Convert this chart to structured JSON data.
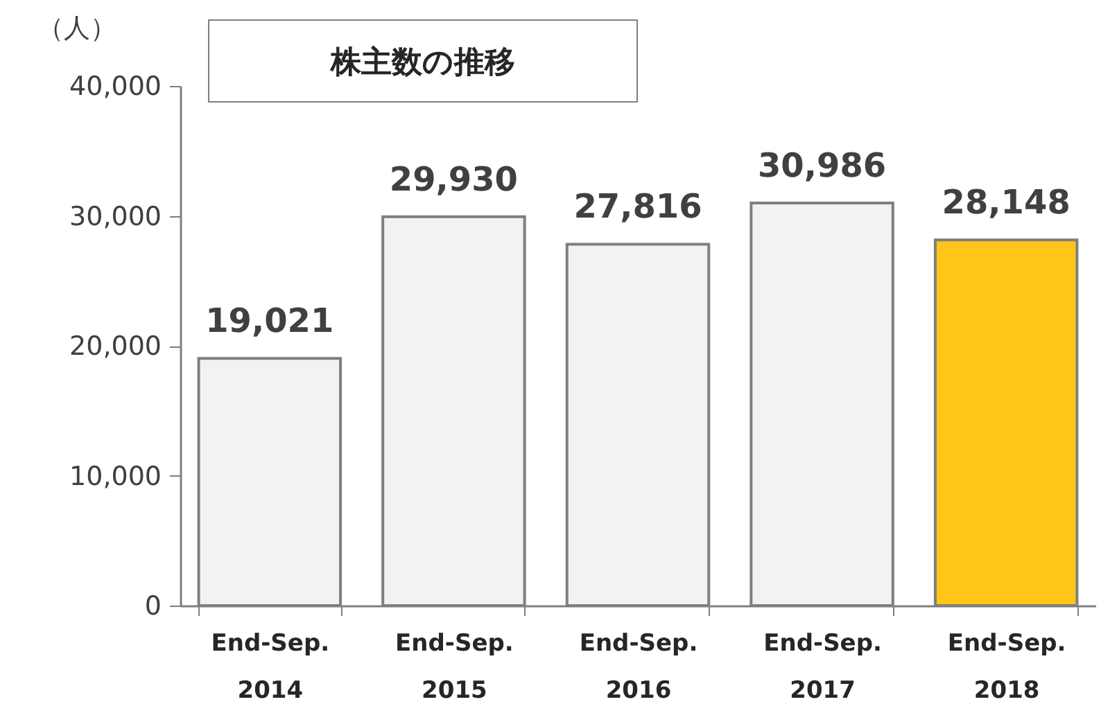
{
  "chart_data": {
    "type": "bar",
    "title": "株主数の推移",
    "ylabel": "（人）",
    "categories": [
      "End-Sep.\n2014",
      "End-Sep.\n2015",
      "End-Sep.\n2016",
      "End-Sep.\n2017",
      "End-Sep.\n2018"
    ],
    "values": [
      19021,
      29930,
      27816,
      30986,
      28148
    ],
    "value_labels": [
      "19,021",
      "29,930",
      "27,816",
      "30,986",
      "28,148"
    ],
    "colors": [
      "#f2f2f2",
      "#f2f2f2",
      "#f2f2f2",
      "#f2f2f2",
      "#ffc519"
    ],
    "ylim": [
      0,
      40000
    ],
    "yticks": [
      0,
      {
        "value": 10000,
        "label": "10,000"
      },
      {
        "value": 20000,
        "label": "20,000"
      },
      {
        "value": 30000,
        "label": "30,000"
      },
      {
        "value": 40000,
        "label": "40,000"
      }
    ],
    "grid": false
  }
}
